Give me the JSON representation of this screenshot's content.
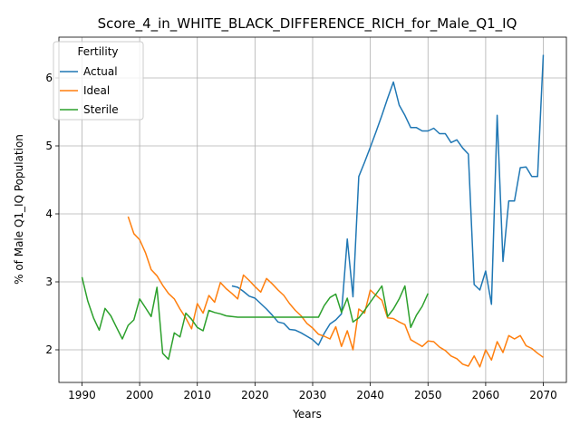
{
  "chart_data": {
    "type": "line",
    "title": "Score_4_in_WHITE_BLACK_DIFFERENCE_RICH_for_Male_Q1_IQ",
    "xlabel": "Years",
    "ylabel": "% of Male Q1_IQ Population",
    "xlim": [
      1986,
      2074
    ],
    "ylim": [
      1.52,
      6.6
    ],
    "xticks": [
      1990,
      2000,
      2010,
      2020,
      2030,
      2040,
      2050,
      2060,
      2070
    ],
    "yticks": [
      2,
      3,
      4,
      5,
      6
    ],
    "grid": true,
    "legend": {
      "title": "Fertility",
      "position": "top-left"
    },
    "series": [
      {
        "name": "Actual",
        "color": "#1f77b4",
        "x": [
          2016,
          2017,
          2018,
          2019,
          2020,
          2021,
          2022,
          2023,
          2024,
          2025,
          2026,
          2027,
          2028,
          2029,
          2030,
          2031,
          2032,
          2033,
          2034,
          2035,
          2036,
          2037,
          2038,
          2039,
          2040,
          2041,
          2042,
          2043,
          2044,
          2045,
          2046,
          2047,
          2048,
          2049,
          2050,
          2051,
          2052,
          2053,
          2054,
          2055,
          2056,
          2057,
          2058,
          2059,
          2060,
          2061,
          2062,
          2063,
          2064,
          2065,
          2066,
          2067,
          2068,
          2069,
          2070
        ],
        "y": [
          2.94,
          2.92,
          2.86,
          2.79,
          2.76,
          2.68,
          2.6,
          2.51,
          2.41,
          2.39,
          2.3,
          2.29,
          2.25,
          2.2,
          2.15,
          2.07,
          2.24,
          2.38,
          2.44,
          2.53,
          3.63,
          2.78,
          4.55,
          4.76,
          4.98,
          5.21,
          5.45,
          5.7,
          5.94,
          5.6,
          5.45,
          5.27,
          5.27,
          5.22,
          5.22,
          5.26,
          5.18,
          5.18,
          5.05,
          5.09,
          4.97,
          4.88,
          2.96,
          2.88,
          3.16,
          2.67,
          5.45,
          3.3,
          4.19,
          4.19,
          4.68,
          4.69,
          4.55,
          4.55,
          6.34
        ]
      },
      {
        "name": "Ideal",
        "color": "#ff7f0e",
        "x": [
          1998,
          1999,
          2000,
          2001,
          2002,
          2003,
          2004,
          2005,
          2006,
          2007,
          2008,
          2009,
          2010,
          2011,
          2012,
          2013,
          2014,
          2015,
          2016,
          2017,
          2018,
          2019,
          2020,
          2021,
          2022,
          2023,
          2024,
          2025,
          2026,
          2027,
          2028,
          2029,
          2030,
          2031,
          2032,
          2033,
          2034,
          2035,
          2036,
          2037,
          2038,
          2039,
          2040,
          2041,
          2042,
          2043,
          2044,
          2045,
          2046,
          2047,
          2048,
          2049,
          2050,
          2051,
          2052,
          2053,
          2054,
          2055,
          2056,
          2057,
          2058,
          2059,
          2060,
          2061,
          2062,
          2063,
          2064,
          2065,
          2066,
          2067,
          2068,
          2069,
          2070
        ],
        "y": [
          3.96,
          3.71,
          3.62,
          3.43,
          3.18,
          3.09,
          2.95,
          2.83,
          2.75,
          2.6,
          2.47,
          2.31,
          2.68,
          2.54,
          2.8,
          2.7,
          2.99,
          2.9,
          2.83,
          2.75,
          3.1,
          3.02,
          2.93,
          2.85,
          3.05,
          2.97,
          2.88,
          2.8,
          2.68,
          2.58,
          2.5,
          2.39,
          2.32,
          2.23,
          2.2,
          2.16,
          2.34,
          2.05,
          2.28,
          2.0,
          2.6,
          2.54,
          2.88,
          2.8,
          2.73,
          2.47,
          2.46,
          2.41,
          2.37,
          2.15,
          2.1,
          2.05,
          2.13,
          2.12,
          2.04,
          1.99,
          1.91,
          1.87,
          1.79,
          1.76,
          1.91,
          1.75,
          2.0,
          1.85,
          2.12,
          1.96,
          2.21,
          2.16,
          2.21,
          2.06,
          2.02,
          1.95,
          1.89
        ]
      },
      {
        "name": "Sterile",
        "color": "#2ca02c",
        "x": [
          1990,
          1991,
          1992,
          1993,
          1994,
          1995,
          1996,
          1997,
          1998,
          1999,
          2000,
          2001,
          2002,
          2003,
          2004,
          2005,
          2006,
          2007,
          2008,
          2009,
          2010,
          2011,
          2012,
          2013,
          2014,
          2015,
          2016,
          2017,
          2018,
          2019,
          2020,
          2021,
          2022,
          2023,
          2024,
          2025,
          2026,
          2027,
          2028,
          2029,
          2030,
          2031,
          2032,
          2033,
          2034,
          2035,
          2036,
          2037,
          2038,
          2039,
          2040,
          2041,
          2042,
          2043,
          2044,
          2045,
          2046,
          2047,
          2048,
          2049,
          2050
        ],
        "y": [
          3.07,
          2.72,
          2.47,
          2.29,
          2.61,
          2.5,
          2.33,
          2.16,
          2.36,
          2.44,
          2.75,
          2.62,
          2.49,
          2.92,
          1.95,
          1.86,
          2.25,
          2.19,
          2.54,
          2.45,
          2.33,
          2.28,
          2.58,
          2.55,
          2.53,
          2.5,
          2.49,
          2.48,
          2.48,
          2.48,
          2.48,
          2.48,
          2.48,
          2.48,
          2.48,
          2.48,
          2.48,
          2.48,
          2.48,
          2.48,
          2.48,
          2.48,
          2.65,
          2.77,
          2.82,
          2.55,
          2.76,
          2.41,
          2.47,
          2.58,
          2.7,
          2.82,
          2.94,
          2.49,
          2.6,
          2.75,
          2.94,
          2.33,
          2.51,
          2.64,
          2.83
        ]
      }
    ]
  }
}
